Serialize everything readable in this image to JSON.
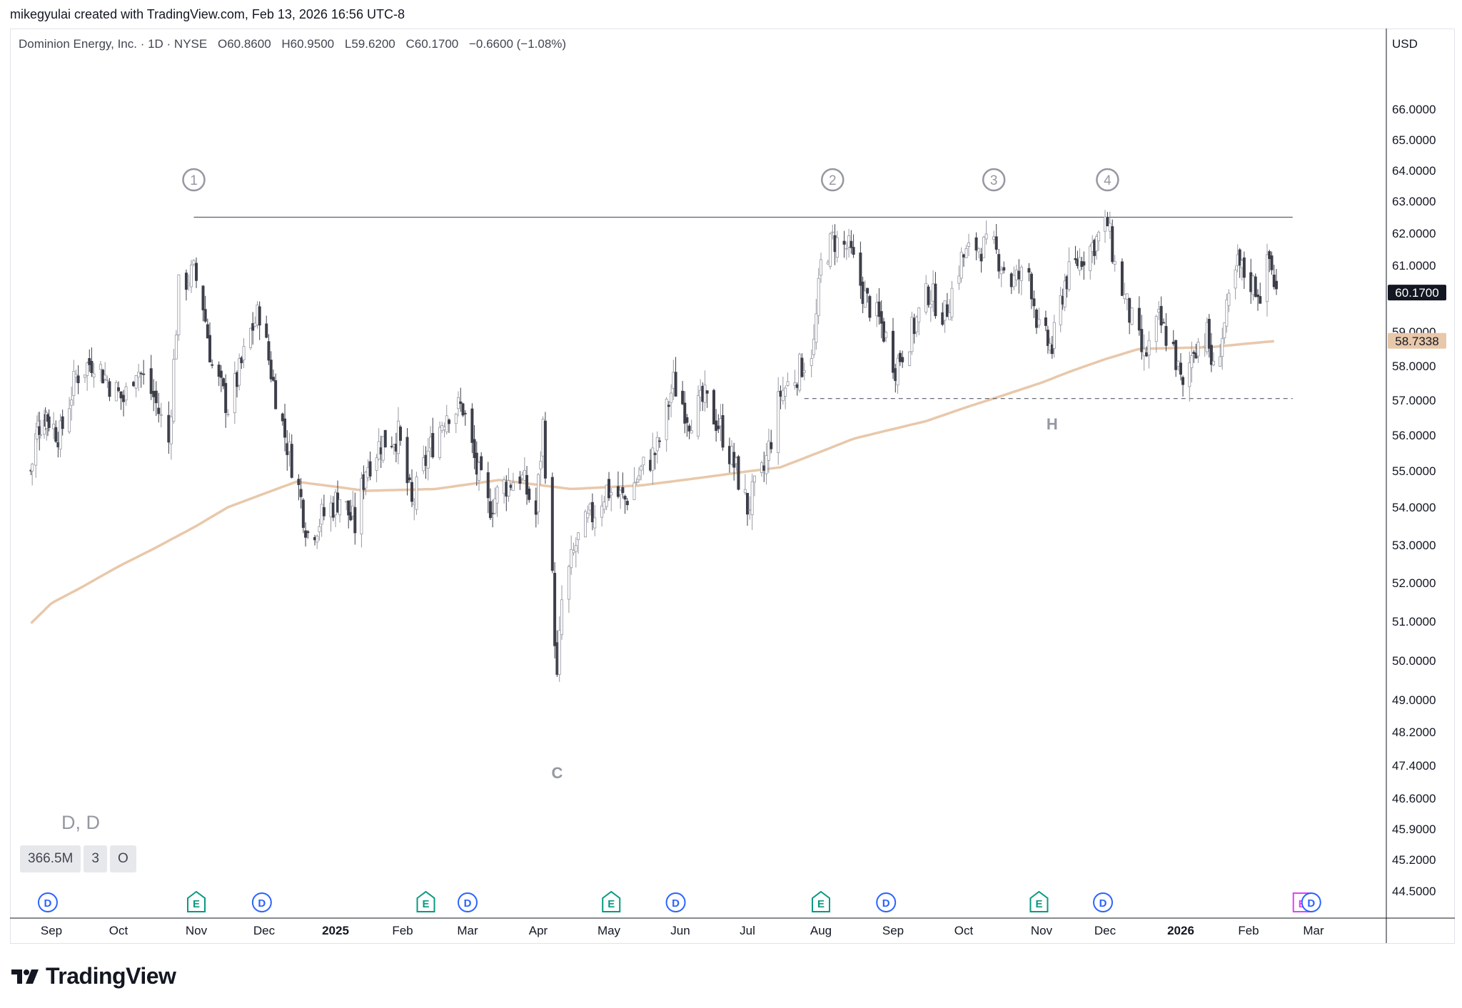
{
  "header": {
    "attribution": "mikegyulai created with TradingView.com, Feb 13, 2026 16:56 UTC-8"
  },
  "legend": {
    "name": "Dominion Energy, Inc. · 1D · NYSE",
    "open": "O60.8600",
    "high": "H60.9500",
    "low": "L59.6200",
    "close": "C60.1700",
    "change": "−0.6600 (−1.08%)"
  },
  "currency": "USD",
  "symbol_label": "D, D",
  "badges": [
    "366.5M",
    "3",
    "O"
  ],
  "footer": {
    "logo_text": "TradingView"
  },
  "colors": {
    "bear": "#3c3f4a",
    "bull_fill": "#ffffff",
    "bull_stroke": "#9598a1",
    "ma": "#e8c8aa",
    "resistance": "#5d606b",
    "support": "#6a6d78",
    "annotation": "#9598a1",
    "dividend": "#2962ff",
    "earnings": "#089981",
    "earnings_future": "#e040fb"
  },
  "chart_data": {
    "type": "candlestick",
    "y_axis_ticks": [
      "66.0000",
      "65.0000",
      "64.0000",
      "63.0000",
      "62.0000",
      "61.0000",
      "59.0000",
      "58.0000",
      "57.0000",
      "56.0000",
      "55.0000",
      "54.0000",
      "53.0000",
      "52.0000",
      "51.0000",
      "50.0000",
      "49.0000",
      "48.2000",
      "47.4000",
      "46.6000",
      "45.9000",
      "45.2000",
      "44.5000"
    ],
    "x_axis_ticks": [
      {
        "label": "Sep",
        "bold": false
      },
      {
        "label": "Oct",
        "bold": false
      },
      {
        "label": "Nov",
        "bold": false
      },
      {
        "label": "Dec",
        "bold": false
      },
      {
        "label": "2025",
        "bold": true
      },
      {
        "label": "Feb",
        "bold": false
      },
      {
        "label": "Mar",
        "bold": false
      },
      {
        "label": "Apr",
        "bold": false
      },
      {
        "label": "May",
        "bold": false
      },
      {
        "label": "Jun",
        "bold": false
      },
      {
        "label": "Jul",
        "bold": false
      },
      {
        "label": "Aug",
        "bold": false
      },
      {
        "label": "Sep",
        "bold": false
      },
      {
        "label": "Oct",
        "bold": false
      },
      {
        "label": "Nov",
        "bold": false
      },
      {
        "label": "Dec",
        "bold": false
      },
      {
        "label": "2026",
        "bold": true
      },
      {
        "label": "Feb",
        "bold": false
      },
      {
        "label": "Mar",
        "bold": false
      }
    ],
    "last_price_label": "60.1700",
    "ma_label": "58.7338",
    "resistance_level": 62.5,
    "support_level": 57.05,
    "annotations": [
      {
        "text": "1",
        "circled": true,
        "date": "2024-10-31"
      },
      {
        "text": "2",
        "circled": true,
        "date": "2025-08-06"
      },
      {
        "text": "3",
        "circled": true,
        "date": "2025-10-13"
      },
      {
        "text": "4",
        "circled": true,
        "date": "2025-12-02"
      },
      {
        "text": "C",
        "circled": false,
        "date": "2025-04-09"
      },
      {
        "text": "H",
        "circled": false,
        "date": "2025-11-06"
      }
    ],
    "events": [
      {
        "type": "D",
        "date": "2024-08-29"
      },
      {
        "type": "E",
        "date": "2024-11-01"
      },
      {
        "type": "D",
        "date": "2024-11-30"
      },
      {
        "type": "E",
        "date": "2025-02-11"
      },
      {
        "type": "D",
        "date": "2025-03-01"
      },
      {
        "type": "E",
        "date": "2025-05-02"
      },
      {
        "type": "D",
        "date": "2025-05-30"
      },
      {
        "type": "E",
        "date": "2025-08-01"
      },
      {
        "type": "D",
        "date": "2025-08-29"
      },
      {
        "type": "E",
        "date": "2025-10-31"
      },
      {
        "type": "D",
        "date": "2025-11-30"
      },
      {
        "type": "E",
        "date": "2026-02-24",
        "future": true
      },
      {
        "type": "D",
        "date": "2026-02-28"
      }
    ],
    "price_anchors": [
      [
        "2024-08-15",
        55.0
      ],
      [
        "2024-08-20",
        56.2
      ],
      [
        "2024-08-28",
        56.6
      ],
      [
        "2024-09-05",
        56.0
      ],
      [
        "2024-09-12",
        57.7
      ],
      [
        "2024-09-20",
        58.2
      ],
      [
        "2024-09-27",
        57.5
      ],
      [
        "2024-10-03",
        57.0
      ],
      [
        "2024-10-08",
        58.0
      ],
      [
        "2024-10-15",
        57.1
      ],
      [
        "2024-10-21",
        55.8
      ],
      [
        "2024-10-25",
        60.3
      ],
      [
        "2024-10-31",
        60.8
      ],
      [
        "2024-11-04",
        59.8
      ],
      [
        "2024-11-08",
        58.0
      ],
      [
        "2024-11-15",
        56.8
      ],
      [
        "2024-11-20",
        57.8
      ],
      [
        "2024-11-25",
        59.0
      ],
      [
        "2024-11-29",
        59.6
      ],
      [
        "2024-12-05",
        57.5
      ],
      [
        "2024-12-10",
        56.0
      ],
      [
        "2024-12-16",
        54.5
      ],
      [
        "2024-12-20",
        53.3
      ],
      [
        "2024-12-27",
        53.8
      ],
      [
        "2025-01-03",
        54.3
      ],
      [
        "2025-01-10",
        53.5
      ],
      [
        "2025-01-15",
        55.1
      ],
      [
        "2025-01-22",
        55.8
      ],
      [
        "2025-01-30",
        56.0
      ],
      [
        "2025-02-05",
        54.0
      ],
      [
        "2025-02-12",
        55.5
      ],
      [
        "2025-02-20",
        56.7
      ],
      [
        "2025-02-27",
        56.8
      ],
      [
        "2025-03-05",
        55.0
      ],
      [
        "2025-03-10",
        54.0
      ],
      [
        "2025-03-17",
        54.6
      ],
      [
        "2025-03-24",
        54.9
      ],
      [
        "2025-03-31",
        53.8
      ],
      [
        "2025-04-03",
        56.3
      ],
      [
        "2025-04-07",
        52.0
      ],
      [
        "2025-04-09",
        49.4
      ],
      [
        "2025-04-11",
        51.5
      ],
      [
        "2025-04-17",
        53.0
      ],
      [
        "2025-04-24",
        53.8
      ],
      [
        "2025-04-30",
        54.5
      ],
      [
        "2025-05-08",
        54.2
      ],
      [
        "2025-05-15",
        55.0
      ],
      [
        "2025-05-22",
        55.6
      ],
      [
        "2025-05-29",
        57.5
      ],
      [
        "2025-06-05",
        56.5
      ],
      [
        "2025-06-12",
        57.0
      ],
      [
        "2025-06-19",
        56.2
      ],
      [
        "2025-06-26",
        55.0
      ],
      [
        "2025-07-01",
        54.0
      ],
      [
        "2025-07-08",
        55.0
      ],
      [
        "2025-07-15",
        57.2
      ],
      [
        "2025-07-22",
        57.8
      ],
      [
        "2025-07-29",
        58.6
      ],
      [
        "2025-08-01",
        61.0
      ],
      [
        "2025-08-06",
        61.8
      ],
      [
        "2025-08-13",
        61.5
      ],
      [
        "2025-08-20",
        60.0
      ],
      [
        "2025-08-27",
        59.2
      ],
      [
        "2025-09-02",
        58.0
      ],
      [
        "2025-09-09",
        59.0
      ],
      [
        "2025-09-16",
        60.2
      ],
      [
        "2025-09-23",
        59.5
      ],
      [
        "2025-09-30",
        61.2
      ],
      [
        "2025-10-06",
        61.6
      ],
      [
        "2025-10-13",
        61.5
      ],
      [
        "2025-10-20",
        60.5
      ],
      [
        "2025-10-27",
        60.8
      ],
      [
        "2025-10-31",
        59.0
      ],
      [
        "2025-11-06",
        58.5
      ],
      [
        "2025-11-12",
        60.5
      ],
      [
        "2025-11-19",
        61.2
      ],
      [
        "2025-11-26",
        61.7
      ],
      [
        "2025-12-02",
        62.3
      ],
      [
        "2025-12-05",
        61.0
      ],
      [
        "2025-12-11",
        59.5
      ],
      [
        "2025-12-17",
        58.2
      ],
      [
        "2025-12-23",
        59.3
      ],
      [
        "2025-12-29",
        58.5
      ],
      [
        "2026-01-02",
        57.2
      ],
      [
        "2026-01-07",
        58.6
      ],
      [
        "2026-01-13",
        58.9
      ],
      [
        "2026-01-16",
        57.8
      ],
      [
        "2026-01-21",
        59.2
      ],
      [
        "2026-01-27",
        61.0
      ],
      [
        "2026-02-02",
        60.5
      ],
      [
        "2026-02-06",
        60.2
      ],
      [
        "2026-02-10",
        61.2
      ],
      [
        "2026-02-13",
        60.17
      ]
    ],
    "ma_anchors": [
      [
        "2024-08-15",
        50.95
      ],
      [
        "2024-09-15",
        51.9
      ],
      [
        "2024-10-15",
        52.9
      ],
      [
        "2024-11-15",
        54.0
      ],
      [
        "2024-12-15",
        54.7
      ],
      [
        "2025-01-15",
        54.45
      ],
      [
        "2025-02-15",
        54.5
      ],
      [
        "2025-03-15",
        54.75
      ],
      [
        "2025-04-15",
        54.5
      ],
      [
        "2025-05-15",
        54.6
      ],
      [
        "2025-06-15",
        54.85
      ],
      [
        "2025-07-15",
        55.1
      ],
      [
        "2025-08-15",
        55.9
      ],
      [
        "2025-09-15",
        56.4
      ],
      [
        "2025-10-15",
        57.1
      ],
      [
        "2025-11-15",
        57.85
      ],
      [
        "2025-12-15",
        58.5
      ],
      [
        "2026-01-15",
        58.55
      ],
      [
        "2026-02-13",
        58.73
      ]
    ]
  }
}
